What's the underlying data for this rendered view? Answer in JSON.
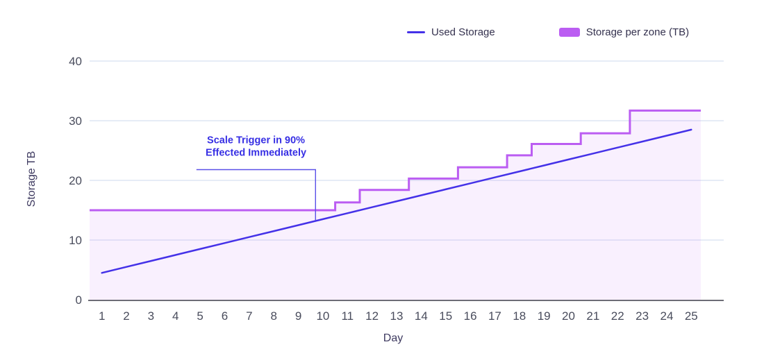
{
  "chart_data": {
    "type": "line",
    "title": "",
    "xlabel": "Day",
    "ylabel": "Storage TB",
    "x_ticks": [
      1,
      2,
      3,
      4,
      5,
      6,
      7,
      8,
      9,
      10,
      11,
      12,
      13,
      14,
      15,
      16,
      17,
      18,
      19,
      20,
      21,
      22,
      23,
      24,
      25
    ],
    "y_ticks": [
      0,
      10,
      20,
      30,
      40
    ],
    "ylim": [
      0,
      40
    ],
    "xlim_days": [
      0.5,
      25.5
    ],
    "grid": true,
    "legend_position": "top",
    "background": "#ffffff",
    "gridline_color": "#dde6f3",
    "axis_line_color": "#6d6d76",
    "tick_label_color": "#494c5c",
    "series": [
      {
        "name": "Used Storage",
        "type": "line",
        "color": "#4431e8",
        "x": [
          1,
          2,
          3,
          4,
          5,
          6,
          7,
          8,
          9,
          10,
          11,
          12,
          13,
          14,
          15,
          16,
          17,
          18,
          19,
          20,
          21,
          22,
          23,
          24,
          25
        ],
        "values": [
          4.5,
          5.5,
          6.5,
          7.5,
          8.5,
          9.5,
          10.5,
          11.5,
          12.5,
          13.5,
          14.5,
          15.5,
          16.5,
          17.5,
          18.5,
          19.5,
          20.5,
          21.5,
          22.5,
          23.5,
          24.5,
          25.5,
          26.5,
          27.5,
          28.5
        ]
      },
      {
        "name": "Storage per zone (TB)",
        "type": "step-area",
        "color": "#bb5df2",
        "fill_color": "#bb5df2",
        "fill_opacity": 0.09,
        "x": [
          1,
          2,
          3,
          4,
          5,
          6,
          7,
          8,
          9,
          10,
          11,
          12,
          13,
          14,
          15,
          16,
          17,
          18,
          19,
          20,
          21,
          22,
          23,
          24,
          25
        ],
        "values": [
          15,
          15,
          15,
          15,
          15,
          15,
          15,
          15,
          15,
          15,
          16.3,
          18.4,
          18.4,
          20.3,
          20.3,
          22.2,
          22.2,
          24.2,
          26.1,
          26.1,
          27.9,
          27.9,
          31.7,
          31.7,
          31.7
        ]
      }
    ],
    "annotation": {
      "text_lines": [
        "Scale Trigger in 90%",
        "Effected Immediately"
      ],
      "color": "#372fe4",
      "line_color": "#5a50e8",
      "bracket": {
        "from_day": 4.85,
        "to_day": 9.7,
        "at_value": 21.8,
        "drop_to_value": 13.3
      }
    }
  },
  "legend": {
    "items": [
      {
        "label": "Used Storage",
        "swatch": "line"
      },
      {
        "label": "Storage per zone (TB)",
        "swatch": "area"
      }
    ]
  },
  "axes": {
    "x_title": "Day",
    "y_title": "Storage TB"
  }
}
